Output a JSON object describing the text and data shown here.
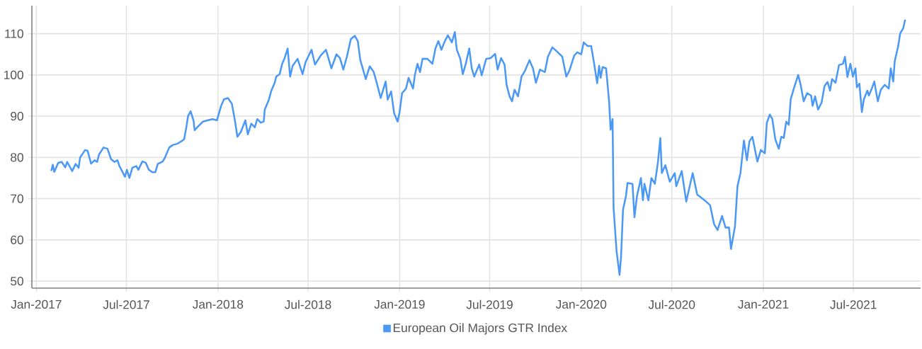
{
  "chart_data": {
    "type": "line",
    "x": [
      "2017-01-31",
      "2017-02-03",
      "2017-02-06",
      "2017-02-14",
      "2017-02-21",
      "2017-02-28",
      "2017-03-04",
      "2017-03-14",
      "2017-03-21",
      "2017-03-27",
      "2017-03-30",
      "2017-04-09",
      "2017-04-14",
      "2017-04-21",
      "2017-04-28",
      "2017-05-03",
      "2017-05-07",
      "2017-05-16",
      "2017-05-24",
      "2017-05-31",
      "2017-06-07",
      "2017-06-13",
      "2017-06-17",
      "2017-06-21",
      "2017-06-28",
      "2017-07-02",
      "2017-07-07",
      "2017-07-13",
      "2017-07-21",
      "2017-07-25",
      "2017-08-02",
      "2017-08-09",
      "2017-08-15",
      "2017-08-22",
      "2017-08-28",
      "2017-09-02",
      "2017-09-12",
      "2017-09-17",
      "2017-09-25",
      "2017-10-02",
      "2017-10-11",
      "2017-10-18",
      "2017-10-25",
      "2017-10-29",
      "2017-11-02",
      "2017-11-07",
      "2017-11-13",
      "2017-11-15",
      "2017-11-22",
      "2017-12-02",
      "2017-12-11",
      "2017-12-21",
      "2017-12-30",
      "2018-01-07",
      "2018-01-13",
      "2018-01-21",
      "2018-01-29",
      "2018-02-04",
      "2018-02-09",
      "2018-02-16",
      "2018-02-25",
      "2018-03-02",
      "2018-03-09",
      "2018-03-16",
      "2018-03-21",
      "2018-03-28",
      "2018-04-03",
      "2018-04-05",
      "2018-04-13",
      "2018-04-18",
      "2018-04-25",
      "2018-04-28",
      "2018-05-05",
      "2018-05-10",
      "2018-05-15",
      "2018-05-21",
      "2018-05-26",
      "2018-05-31",
      "2018-06-10",
      "2018-06-20",
      "2018-06-26",
      "2018-07-08",
      "2018-07-15",
      "2018-07-27",
      "2018-08-06",
      "2018-08-17",
      "2018-08-27",
      "2018-09-03",
      "2018-09-10",
      "2018-09-17",
      "2018-09-25",
      "2018-10-03",
      "2018-10-09",
      "2018-10-14",
      "2018-10-25",
      "2018-11-02",
      "2018-11-10",
      "2018-11-16",
      "2018-11-24",
      "2018-12-04",
      "2018-12-08",
      "2018-12-15",
      "2018-12-21",
      "2018-12-28",
      "2019-01-01",
      "2019-01-06",
      "2019-01-14",
      "2019-01-19",
      "2019-01-28",
      "2019-02-01",
      "2019-02-06",
      "2019-02-11",
      "2019-02-16",
      "2019-02-26",
      "2019-03-08",
      "2019-03-14",
      "2019-03-20",
      "2019-03-26",
      "2019-04-02",
      "2019-04-08",
      "2019-04-16",
      "2019-04-22",
      "2019-04-26",
      "2019-05-03",
      "2019-05-08",
      "2019-05-14",
      "2019-05-21",
      "2019-05-26",
      "2019-05-31",
      "2019-06-10",
      "2019-06-15",
      "2019-06-24",
      "2019-07-03",
      "2019-07-12",
      "2019-07-17",
      "2019-07-24",
      "2019-07-31",
      "2019-08-04",
      "2019-08-10",
      "2019-08-15",
      "2019-08-20",
      "2019-08-27",
      "2019-09-03",
      "2019-09-10",
      "2019-09-19",
      "2019-09-26",
      "2019-10-02",
      "2019-10-10",
      "2019-10-20",
      "2019-10-26",
      "2019-11-04",
      "2019-11-15",
      "2019-11-24",
      "2019-12-02",
      "2019-12-08",
      "2019-12-18",
      "2019-12-24",
      "2020-01-01",
      "2020-01-06",
      "2020-01-14",
      "2020-01-21",
      "2020-01-27",
      "2020-02-02",
      "2020-02-06",
      "2020-02-09",
      "2020-02-13",
      "2020-02-20",
      "2020-02-26",
      "2020-02-29",
      "2020-03-04",
      "2020-03-06",
      "2020-03-12",
      "2020-03-18",
      "2020-03-21",
      "2020-03-25",
      "2020-03-31",
      "2020-04-03",
      "2020-04-13",
      "2020-04-17",
      "2020-04-22",
      "2020-04-30",
      "2020-05-04",
      "2020-05-07",
      "2020-05-15",
      "2020-05-21",
      "2020-05-28",
      "2020-06-03",
      "2020-06-08",
      "2020-06-11",
      "2020-06-18",
      "2020-06-27",
      "2020-07-07",
      "2020-07-10",
      "2020-07-21",
      "2020-07-30",
      "2020-08-12",
      "2020-08-21",
      "2020-09-05",
      "2020-09-16",
      "2020-09-24",
      "2020-10-01",
      "2020-10-10",
      "2020-10-17",
      "2020-10-24",
      "2020-10-28",
      "2020-11-05",
      "2020-11-10",
      "2020-11-16",
      "2020-11-23",
      "2020-11-29",
      "2020-12-04",
      "2020-12-10",
      "2020-12-20",
      "2020-12-27",
      "2021-01-04",
      "2021-01-08",
      "2021-01-14",
      "2021-01-19",
      "2021-01-25",
      "2021-02-01",
      "2021-02-06",
      "2021-02-11",
      "2021-02-16",
      "2021-02-21",
      "2021-02-25",
      "2021-03-04",
      "2021-03-12",
      "2021-03-17",
      "2021-03-23",
      "2021-03-30",
      "2021-04-07",
      "2021-04-10",
      "2021-04-15",
      "2021-04-21",
      "2021-04-28",
      "2021-05-04",
      "2021-05-10",
      "2021-05-15",
      "2021-05-19",
      "2021-05-26",
      "2021-06-02",
      "2021-06-10",
      "2021-06-14",
      "2021-06-19",
      "2021-06-25",
      "2021-06-30",
      "2021-07-05",
      "2021-07-08",
      "2021-07-13",
      "2021-07-18",
      "2021-07-22",
      "2021-07-29",
      "2021-08-01",
      "2021-08-06",
      "2021-08-12",
      "2021-08-19",
      "2021-08-25",
      "2021-09-02",
      "2021-09-10",
      "2021-09-14",
      "2021-09-19",
      "2021-09-22",
      "2021-09-29",
      "2021-10-03",
      "2021-10-09",
      "2021-10-13"
    ],
    "series": [
      {
        "name": "European Oil Majors GTR Index",
        "color": "#4b99f5",
        "values": [
          76.7,
          78.2,
          76.5,
          78.7,
          78.9,
          77.6,
          78.9,
          76.7,
          78.4,
          77.5,
          80.0,
          81.8,
          81.6,
          78.5,
          79.3,
          78.9,
          80.7,
          82.4,
          82.1,
          79.6,
          78.9,
          79.3,
          77.9,
          77.0,
          75.3,
          77.0,
          75.0,
          77.5,
          77.9,
          77.0,
          79.0,
          78.7,
          77.0,
          76.4,
          76.4,
          78.4,
          79.0,
          80.1,
          82.4,
          83.0,
          83.3,
          83.8,
          84.4,
          87.0,
          90.1,
          91.2,
          88.9,
          86.6,
          87.5,
          88.7,
          89.0,
          89.3,
          89.0,
          92.4,
          94.1,
          94.4,
          93.0,
          89.0,
          85.0,
          86.2,
          89.0,
          85.6,
          88.2,
          87.3,
          89.3,
          88.4,
          88.7,
          91.6,
          93.9,
          96.1,
          98.1,
          99.6,
          100.2,
          102.7,
          104.1,
          106.4,
          99.6,
          102.2,
          103.9,
          100.2,
          103.1,
          106.1,
          102.5,
          104.8,
          106.1,
          101.6,
          105.0,
          104.1,
          101.3,
          104.4,
          108.7,
          109.5,
          108.2,
          103.6,
          99.0,
          102.1,
          100.7,
          98.1,
          94.4,
          98.4,
          94.0,
          96.0,
          90.7,
          88.7,
          91.0,
          95.6,
          96.7,
          99.3,
          96.7,
          100.2,
          102.7,
          100.7,
          103.9,
          103.9,
          102.7,
          106.4,
          108.2,
          106.1,
          108.2,
          109.6,
          107.9,
          110.4,
          106.1,
          103.9,
          100.2,
          102.7,
          106.4,
          101.6,
          99.6,
          102.5,
          99.9,
          103.9,
          104.1,
          105.1,
          101.3,
          104.1,
          102.5,
          97.6,
          94.8,
          93.6,
          96.4,
          94.8,
          99.6,
          101.0,
          103.6,
          101.6,
          98.1,
          101.3,
          100.7,
          104.4,
          106.7,
          105.5,
          104.4,
          99.6,
          101.0,
          104.7,
          105.5,
          105.0,
          107.9,
          107.0,
          107.0,
          102.7,
          98.0,
          102.2,
          99.3,
          101.9,
          101.6,
          93.6,
          86.7,
          89.3,
          67.8,
          57.3,
          51.5,
          55.8,
          67.3,
          70.7,
          73.8,
          73.6,
          65.5,
          70.6,
          75.0,
          69.6,
          73.6,
          69.6,
          75.0,
          73.6,
          78.7,
          84.7,
          76.2,
          78.1,
          74.1,
          76.2,
          73.0,
          76.7,
          69.3,
          76.2,
          71.0,
          69.6,
          68.4,
          63.8,
          62.4,
          65.8,
          63.0,
          63.0,
          57.8,
          63.3,
          73.0,
          76.2,
          84.1,
          79.3,
          83.9,
          85.0,
          79.0,
          81.8,
          81.0,
          88.4,
          90.4,
          89.3,
          84.4,
          82.1,
          85.0,
          84.7,
          88.7,
          87.9,
          94.1,
          97.0,
          100.0,
          97.6,
          93.6,
          95.6,
          95.0,
          92.5,
          94.8,
          91.6,
          93.3,
          97.3,
          98.3,
          96.2,
          99.0,
          98.1,
          102.4,
          102.7,
          104.4,
          99.5,
          102.7,
          99.6,
          101.6,
          97.0,
          97.9,
          91.0,
          94.1,
          96.2,
          95.0,
          96.4,
          98.4,
          93.6,
          96.4,
          97.6,
          96.7,
          101.6,
          98.4,
          103.3,
          107.0,
          110.1,
          111.3,
          113.4
        ]
      }
    ],
    "xlim": [
      "2016-12-23",
      "2021-11-13"
    ],
    "xticks": [
      {
        "value": "2017-01-01",
        "label": "Jan-2017"
      },
      {
        "value": "2017-07-01",
        "label": "Jul-2017"
      },
      {
        "value": "2018-01-01",
        "label": "Jan-2018"
      },
      {
        "value": "2018-07-01",
        "label": "Jul-2018"
      },
      {
        "value": "2019-01-01",
        "label": "Jan-2019"
      },
      {
        "value": "2019-07-01",
        "label": "Jul-2019"
      },
      {
        "value": "2020-01-01",
        "label": "Jan-2020"
      },
      {
        "value": "2020-07-01",
        "label": "Jul-2020"
      },
      {
        "value": "2021-01-01",
        "label": "Jan-2021"
      },
      {
        "value": "2021-07-01",
        "label": "Jul-2021"
      }
    ],
    "ylim": [
      48.3,
      116.8
    ],
    "yticks": [
      50,
      60,
      70,
      80,
      90,
      100,
      110
    ],
    "grid": true,
    "legend": "bottom",
    "marker": "none",
    "line_style": "solid"
  }
}
